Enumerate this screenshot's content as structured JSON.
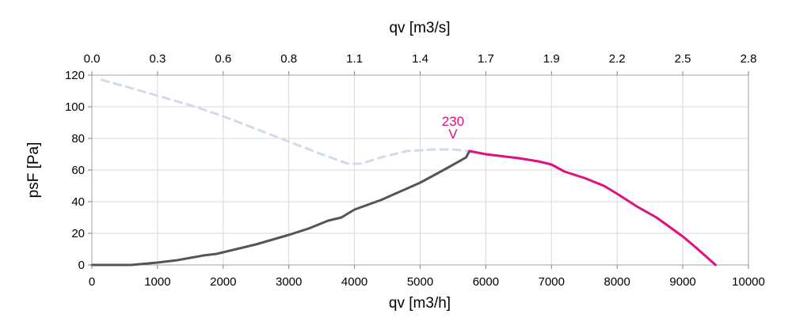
{
  "chart_data": {
    "type": "line",
    "xlabel": "qv [m3/h]",
    "x2label": "qv [m3/s]",
    "ylabel": "psF [Pa]",
    "xlim": [
      0,
      10000
    ],
    "ylim": [
      0,
      120
    ],
    "x_ticks": [
      0,
      1000,
      2000,
      3000,
      4000,
      5000,
      6000,
      7000,
      8000,
      9000,
      10000
    ],
    "x2_tick_labels": [
      "0.0",
      "0.3",
      "0.6",
      "0.8",
      "1.1",
      "1.4",
      "1.7",
      "1.9",
      "2.2",
      "2.5",
      "2.8"
    ],
    "y_ticks": [
      0,
      20,
      40,
      60,
      80,
      100,
      120
    ],
    "grid": true,
    "annotations": [
      {
        "text": "230",
        "x": 5500,
        "y": 88,
        "color": "#e0107f"
      },
      {
        "text": "V",
        "x": 5500,
        "y": 80,
        "color": "#e0107f"
      }
    ],
    "series": [
      {
        "style": "dashed",
        "color": "#d0dcea",
        "x": [
          150,
          500,
          1000,
          1500,
          2000,
          2500,
          3000,
          3500,
          3900,
          4100,
          4400,
          4800,
          5200,
          5500,
          5750
        ],
        "y": [
          117,
          113,
          107,
          101,
          94,
          86,
          78,
          70,
          64,
          64,
          68,
          72,
          73,
          73,
          72
        ]
      },
      {
        "style": "solid",
        "color": "#555555",
        "x": [
          0,
          600,
          1000,
          1300,
          1700,
          1900,
          2100,
          2500,
          3000,
          3300,
          3600,
          3800,
          4000,
          4400,
          5000,
          5400,
          5700,
          5750
        ],
        "y": [
          0,
          0,
          1.5,
          3,
          6,
          7,
          9,
          13,
          19,
          23,
          28,
          30,
          35,
          41,
          52,
          61,
          68,
          72
        ]
      },
      {
        "style": "solid",
        "color": "#e0107f",
        "x": [
          5750,
          6000,
          6200,
          6500,
          6800,
          7000,
          7200,
          7500,
          7800,
          8000,
          8300,
          8600,
          9000,
          9200,
          9500
        ],
        "y": [
          72,
          70,
          69,
          67.5,
          65.5,
          63.5,
          59,
          55,
          50,
          45,
          37,
          30,
          18,
          11,
          0
        ]
      }
    ]
  }
}
